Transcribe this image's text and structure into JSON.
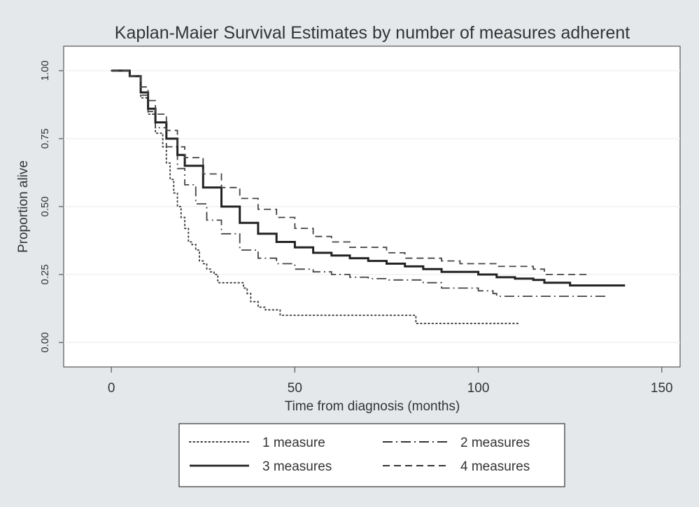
{
  "chart_data": {
    "type": "line",
    "title": "Kaplan-Maier Survival Estimates by number of measures adherent",
    "xlabel": "Time from diagnosis (months)",
    "ylabel": "Proportion alive",
    "xlim": [
      -13,
      155
    ],
    "ylim": [
      -0.09,
      1.09
    ],
    "x_ticks": [
      0,
      50,
      100,
      150
    ],
    "y_ticks": [
      0.0,
      0.25,
      0.5,
      0.75,
      1.0
    ],
    "x_tick_labels": [
      "0",
      "50",
      "100",
      "150"
    ],
    "y_tick_labels": [
      "0.00",
      "0.25",
      "0.50",
      "0.75",
      "1.00"
    ],
    "grid": true,
    "legend_position": "bottom",
    "series": [
      {
        "name": "1 measure",
        "line_style": "dotted",
        "x": [
          0,
          4,
          5,
          8,
          10,
          12,
          14,
          15,
          16,
          17,
          18,
          19,
          20,
          21,
          22,
          23,
          24,
          25,
          26,
          27,
          28,
          29,
          30,
          35,
          36,
          37,
          38,
          40,
          42,
          43,
          45,
          46,
          47,
          70,
          82,
          83,
          111
        ],
        "y": [
          1.0,
          1.0,
          0.98,
          0.9,
          0.84,
          0.77,
          0.72,
          0.66,
          0.6,
          0.55,
          0.5,
          0.46,
          0.42,
          0.37,
          0.36,
          0.34,
          0.3,
          0.29,
          0.27,
          0.26,
          0.25,
          0.22,
          0.22,
          0.22,
          0.2,
          0.18,
          0.15,
          0.13,
          0.12,
          0.12,
          0.12,
          0.1,
          0.1,
          0.1,
          0.1,
          0.07,
          0.07
        ]
      },
      {
        "name": "2 measures",
        "line_style": "dash-dot",
        "x": [
          0,
          4,
          5,
          8,
          10,
          12,
          15,
          18,
          20,
          23,
          26,
          30,
          35,
          40,
          45,
          50,
          55,
          60,
          65,
          70,
          75,
          80,
          85,
          90,
          95,
          100,
          104,
          105,
          110,
          120,
          130,
          135
        ],
        "y": [
          1.0,
          1.0,
          0.98,
          0.91,
          0.85,
          0.79,
          0.72,
          0.64,
          0.58,
          0.51,
          0.45,
          0.4,
          0.34,
          0.31,
          0.29,
          0.27,
          0.26,
          0.25,
          0.24,
          0.235,
          0.23,
          0.23,
          0.22,
          0.2,
          0.2,
          0.19,
          0.18,
          0.17,
          0.17,
          0.17,
          0.17,
          0.17
        ]
      },
      {
        "name": "3 measures",
        "line_style": "solid",
        "x": [
          0,
          4,
          5,
          8,
          10,
          12,
          15,
          18,
          20,
          25,
          30,
          35,
          40,
          45,
          50,
          55,
          60,
          65,
          70,
          75,
          80,
          85,
          90,
          95,
          100,
          105,
          110,
          115,
          118,
          125,
          130,
          140
        ],
        "y": [
          1.0,
          1.0,
          0.98,
          0.92,
          0.86,
          0.81,
          0.75,
          0.69,
          0.65,
          0.57,
          0.5,
          0.44,
          0.4,
          0.37,
          0.35,
          0.33,
          0.32,
          0.31,
          0.3,
          0.29,
          0.28,
          0.27,
          0.26,
          0.26,
          0.25,
          0.24,
          0.235,
          0.23,
          0.22,
          0.21,
          0.21,
          0.21
        ]
      },
      {
        "name": "4 measures",
        "line_style": "dashed",
        "x": [
          0,
          4,
          5,
          8,
          10,
          12,
          15,
          18,
          20,
          25,
          30,
          35,
          40,
          45,
          50,
          55,
          60,
          65,
          70,
          75,
          80,
          85,
          90,
          95,
          100,
          105,
          110,
          115,
          117,
          118,
          125,
          130
        ],
        "y": [
          1.0,
          1.0,
          0.98,
          0.94,
          0.89,
          0.84,
          0.78,
          0.72,
          0.68,
          0.62,
          0.57,
          0.53,
          0.49,
          0.46,
          0.42,
          0.39,
          0.37,
          0.35,
          0.35,
          0.33,
          0.31,
          0.31,
          0.3,
          0.29,
          0.29,
          0.28,
          0.28,
          0.27,
          0.27,
          0.25,
          0.25,
          0.25
        ]
      }
    ]
  }
}
